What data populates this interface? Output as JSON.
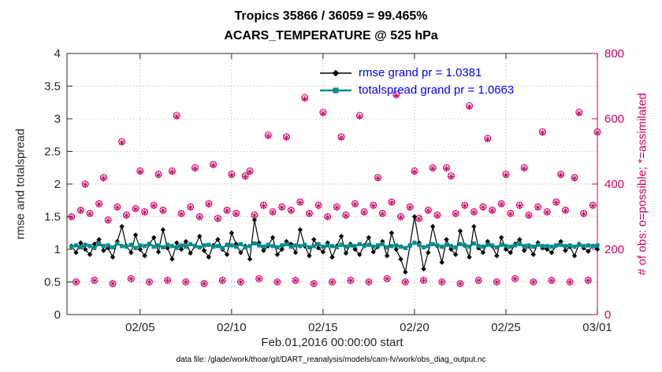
{
  "colors": {
    "background": "#FFFFFF",
    "axis_text": "#262626",
    "grid": "#B5B5B5",
    "legend_text": "#0000FF"
  },
  "chart_data": {
    "type": "line",
    "title_line1": "Tropics 35866 / 36059 = 99.465%",
    "title_line2": "ACARS_TEMPERATURE @ 525 hPa",
    "xlabel": "Feb.01,2016 00:00:00 start",
    "ylabel_left": "rmse and totalspread",
    "ylabel_right": "# of obs: o=possible; *=assimilated",
    "caption": "data file: /glade/work/thoar/git/DART_reanalysis/models/cam-fv/work/obs_diag_output.nc",
    "x_range_days": [
      0,
      29
    ],
    "left_ylim": [
      0,
      4
    ],
    "right_ylim": [
      0,
      800
    ],
    "grid": true,
    "x_ticks": {
      "values": [
        4,
        9,
        14,
        19,
        24,
        29
      ],
      "labels": [
        "02/05",
        "02/10",
        "02/15",
        "02/20",
        "02/25",
        "03/01"
      ]
    },
    "left_ticks": {
      "values": [
        0,
        0.5,
        1,
        1.5,
        2,
        2.5,
        3,
        3.5,
        4
      ],
      "labels": [
        "0",
        "0.5",
        "1",
        "1.5",
        "2",
        "2.5",
        "3",
        "3.5",
        "4"
      ]
    },
    "right_ticks": {
      "values": [
        0,
        200,
        400,
        600,
        800
      ],
      "labels": [
        "0",
        "200",
        "400",
        "600",
        "800"
      ]
    },
    "legend": {
      "position": "top-center-inside",
      "items": [
        {
          "label": "rmse grand pr = 1.0381",
          "series": "rmse"
        },
        {
          "label": "totalspread grand pr = 1.0663",
          "series": "totalspread"
        }
      ]
    },
    "n_points": 116,
    "x_start_day": 0.25,
    "x_step_day": 0.25,
    "series": [
      {
        "name": "rmse",
        "axis": "left",
        "marker": "diamond",
        "color": "#000000",
        "values": [
          1.05,
          0.95,
          1.1,
          1.0,
          0.92,
          1.08,
          1.15,
          0.98,
          1.02,
          0.88,
          1.12,
          1.35,
          1.05,
          0.95,
          1.22,
          1.0,
          0.9,
          1.08,
          1.18,
          0.96,
          1.3,
          1.02,
          0.85,
          1.1,
          1.0,
          1.12,
          0.94,
          1.05,
          1.2,
          0.98,
          0.88,
          1.06,
          1.15,
          1.0,
          0.92,
          1.25,
          1.08,
          0.95,
          1.05,
          0.85,
          1.45,
          1.1,
          0.98,
          1.05,
          1.18,
          0.92,
          1.0,
          1.12,
          1.08,
          0.95,
          1.3,
          1.05,
          0.9,
          1.15,
          1.02,
          0.96,
          1.1,
          0.88,
          1.05,
          1.2,
          0.94,
          1.08,
          1.0,
          0.92,
          1.06,
          1.18,
          0.96,
          1.04,
          1.12,
          0.9,
          1.25,
          1.0,
          0.85,
          0.65,
          1.05,
          1.5,
          1.1,
          0.7,
          0.95,
          1.35,
          1.05,
          0.8,
          1.15,
          1.0,
          0.92,
          1.28,
          1.06,
          0.88,
          1.35,
          1.02,
          0.95,
          1.12,
          1.05,
          0.9,
          1.18,
          1.0,
          0.95,
          1.08,
          1.15,
          0.98,
          1.05,
          0.92,
          1.1,
          1.02,
          1.0,
          0.95,
          1.06,
          1.12,
          0.98,
          1.04,
          0.9,
          1.08,
          1.02,
          0.97,
          1.05,
          1.0
        ]
      },
      {
        "name": "totalspread",
        "axis": "left",
        "marker": "square",
        "color": "#008B8B",
        "values": [
          1.04,
          1.06,
          1.03,
          1.07,
          1.05,
          1.02,
          1.08,
          1.05,
          1.06,
          1.03,
          1.09,
          1.05,
          1.04,
          1.07,
          1.02,
          1.06,
          1.05,
          1.08,
          1.04,
          1.06,
          1.03,
          1.07,
          1.05,
          1.02,
          1.06,
          1.04,
          1.08,
          1.05,
          1.03,
          1.06,
          1.07,
          1.04,
          1.05,
          1.02,
          1.07,
          1.06,
          1.04,
          1.08,
          1.03,
          1.05,
          1.09,
          1.06,
          1.04,
          1.07,
          1.05,
          1.03,
          1.06,
          1.08,
          1.04,
          1.06,
          1.05,
          1.07,
          1.03,
          1.05,
          1.08,
          1.04,
          1.06,
          1.05,
          1.03,
          1.07,
          1.04,
          1.06,
          1.05,
          1.08,
          1.05,
          1.07,
          1.04,
          1.06,
          1.08,
          1.03,
          1.05,
          1.06,
          1.04,
          1.02,
          1.06,
          1.1,
          1.07,
          1.03,
          1.05,
          1.08,
          1.06,
          1.04,
          1.07,
          1.05,
          1.03,
          1.08,
          1.06,
          1.04,
          1.09,
          1.05,
          1.04,
          1.07,
          1.06,
          1.03,
          1.07,
          1.05,
          1.04,
          1.06,
          1.08,
          1.05,
          1.06,
          1.04,
          1.07,
          1.05,
          1.05,
          1.04,
          1.06,
          1.07,
          1.05,
          1.06,
          1.04,
          1.07,
          1.05,
          1.06,
          1.05,
          1.06
        ]
      },
      {
        "name": "possible_obs",
        "axis": "right",
        "marker": "circle",
        "color": "#CC0066",
        "values": [
          300,
          100,
          320,
          400,
          310,
          105,
          340,
          420,
          290,
          95,
          330,
          530,
          305,
          110,
          325,
          440,
          315,
          100,
          335,
          430,
          320,
          105,
          440,
          610,
          310,
          100,
          330,
          450,
          300,
          95,
          340,
          460,
          295,
          105,
          320,
          430,
          310,
          100,
          425,
          440,
          305,
          110,
          335,
          550,
          315,
          100,
          330,
          545,
          320,
          105,
          345,
          665,
          310,
          95,
          335,
          620,
          300,
          100,
          330,
          545,
          305,
          105,
          340,
          610,
          315,
          100,
          335,
          420,
          310,
          110,
          345,
          675,
          300,
          100,
          330,
          440,
          295,
          105,
          320,
          450,
          305,
          100,
          450,
          425,
          310,
          95,
          335,
          640,
          315,
          105,
          330,
          540,
          320,
          100,
          340,
          430,
          310,
          110,
          335,
          450,
          305,
          100,
          330,
          560,
          315,
          105,
          345,
          430,
          320,
          100,
          420,
          620,
          310,
          105,
          335,
          560
        ]
      },
      {
        "name": "assimilated_obs",
        "axis": "right",
        "marker": "asterisk",
        "color": "#CC0066",
        "source": "possible_obs",
        "fraction_of_possible": 0.99465
      }
    ]
  }
}
